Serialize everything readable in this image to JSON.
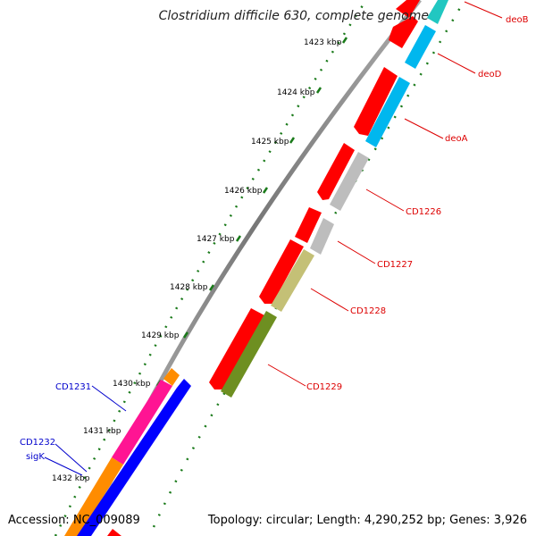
{
  "title": "Clostridium difficile 630, complete genome",
  "footer": {
    "accession": "Accession: NC_009089",
    "summary": "Topology: circular; Length: 4,290,252 bp; Genes: 3,926"
  },
  "colors": {
    "tick": "#1a7a1a",
    "ring": "#888888",
    "gene_red": "#ff0000",
    "gene_cyan": "#00b7ee",
    "gene_teal": "#21c7c1",
    "gene_gray": "#bdbdbd",
    "gene_khaki": "#c4c076",
    "gene_olive": "#6e8f21",
    "gene_magenta": "#ff1493",
    "gene_orange": "#ff8c00",
    "gene_blue": "#0000ff",
    "label_red": "#dd0000",
    "label_blue": "#0000cc"
  },
  "scale_labels": [
    "1423 kbp",
    "1424 kbp",
    "1425 kbp",
    "1426 kbp",
    "1427 kbp",
    "1428 kbp",
    "1429 kbp",
    "1430 kbp",
    "1431 kbp",
    "1432 kbp"
  ],
  "genes": [
    {
      "name": "deoB",
      "strand": "+",
      "color": "red"
    },
    {
      "name": "deoD",
      "strand": "+",
      "color": "red"
    },
    {
      "name": "deoA",
      "strand": "+",
      "color": "red"
    },
    {
      "name": "CD1226",
      "strand": "+",
      "color": "red"
    },
    {
      "name": "CD1227",
      "strand": "+",
      "color": "red"
    },
    {
      "name": "CD1228",
      "strand": "+",
      "color": "red"
    },
    {
      "name": "CD1229",
      "strand": "+",
      "color": "red"
    },
    {
      "name": "CD1231",
      "strand": "-",
      "color": "blue"
    },
    {
      "name": "CD1232",
      "strand": "-",
      "color": "blue"
    },
    {
      "name": "sigK",
      "strand": "-",
      "color": "blue"
    }
  ]
}
